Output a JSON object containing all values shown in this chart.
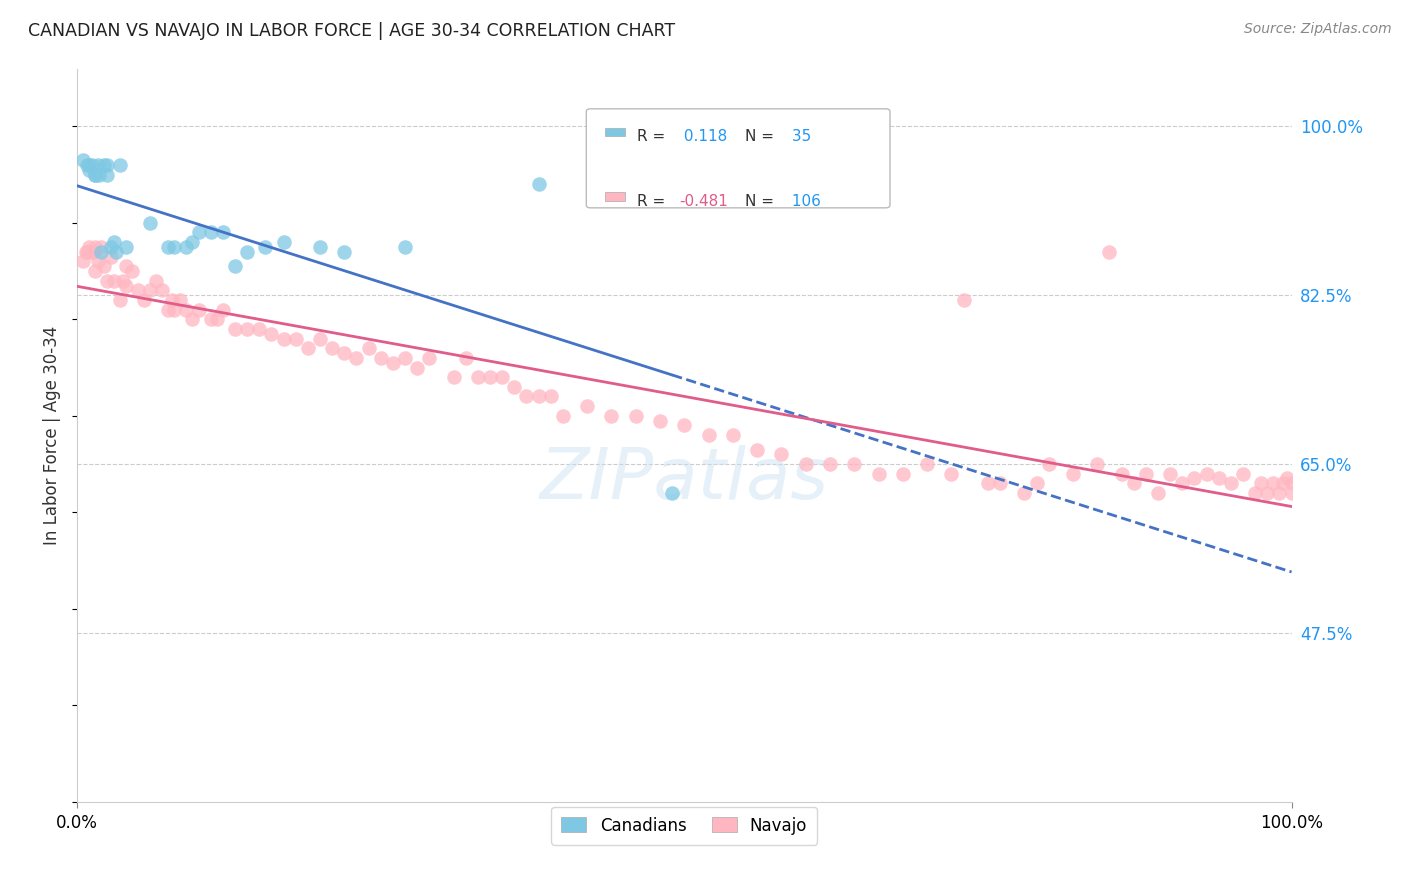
{
  "title": "CANADIAN VS NAVAJO IN LABOR FORCE | AGE 30-34 CORRELATION CHART",
  "source": "Source: ZipAtlas.com",
  "ylabel": "In Labor Force | Age 30-34",
  "xlim": [
    0.0,
    1.0
  ],
  "ylim": [
    0.3,
    1.06
  ],
  "yticks": [
    0.475,
    0.65,
    0.825,
    1.0
  ],
  "ytick_labels": [
    "47.5%",
    "65.0%",
    "82.5%",
    "100.0%"
  ],
  "xtick_labels": [
    "0.0%",
    "100.0%"
  ],
  "xticks": [
    0.0,
    1.0
  ],
  "canadian_R": 0.118,
  "canadian_N": 35,
  "navajo_R": -0.481,
  "navajo_N": 106,
  "canadian_color": "#7ec8e3",
  "navajo_color": "#ffb6c1",
  "canadian_line_color": "#4472c4",
  "navajo_line_color": "#e05c8a",
  "legend_label_canadian": "Canadians",
  "legend_label_navajo": "Navajo",
  "background_color": "#ffffff",
  "grid_color": "#cccccc",
  "canadian_x": [
    0.005,
    0.008,
    0.01,
    0.01,
    0.012,
    0.015,
    0.015,
    0.017,
    0.018,
    0.02,
    0.022,
    0.025,
    0.025,
    0.028,
    0.03,
    0.032,
    0.035,
    0.04,
    0.06,
    0.075,
    0.08,
    0.09,
    0.095,
    0.1,
    0.11,
    0.12,
    0.13,
    0.14,
    0.155,
    0.17,
    0.2,
    0.22,
    0.27,
    0.38,
    0.49
  ],
  "canadian_y": [
    0.965,
    0.96,
    0.96,
    0.955,
    0.96,
    0.95,
    0.95,
    0.96,
    0.95,
    0.87,
    0.96,
    0.96,
    0.95,
    0.875,
    0.88,
    0.87,
    0.96,
    0.875,
    0.9,
    0.875,
    0.875,
    0.875,
    0.88,
    0.89,
    0.89,
    0.89,
    0.855,
    0.87,
    0.875,
    0.88,
    0.875,
    0.87,
    0.875,
    0.94,
    0.62
  ],
  "navajo_x": [
    0.005,
    0.007,
    0.008,
    0.01,
    0.012,
    0.013,
    0.015,
    0.015,
    0.017,
    0.02,
    0.022,
    0.025,
    0.028,
    0.03,
    0.035,
    0.038,
    0.04,
    0.04,
    0.045,
    0.05,
    0.055,
    0.06,
    0.065,
    0.07,
    0.075,
    0.078,
    0.08,
    0.085,
    0.09,
    0.095,
    0.1,
    0.11,
    0.115,
    0.12,
    0.13,
    0.14,
    0.15,
    0.16,
    0.17,
    0.18,
    0.19,
    0.2,
    0.21,
    0.22,
    0.23,
    0.24,
    0.25,
    0.26,
    0.27,
    0.28,
    0.29,
    0.31,
    0.32,
    0.33,
    0.34,
    0.35,
    0.36,
    0.37,
    0.38,
    0.39,
    0.4,
    0.42,
    0.44,
    0.46,
    0.48,
    0.5,
    0.52,
    0.54,
    0.56,
    0.58,
    0.6,
    0.62,
    0.64,
    0.66,
    0.68,
    0.7,
    0.72,
    0.73,
    0.75,
    0.76,
    0.78,
    0.79,
    0.8,
    0.82,
    0.84,
    0.85,
    0.86,
    0.87,
    0.88,
    0.89,
    0.9,
    0.91,
    0.92,
    0.93,
    0.94,
    0.95,
    0.96,
    0.97,
    0.975,
    0.98,
    0.985,
    0.99,
    0.993,
    0.996,
    1.0,
    1.0
  ],
  "navajo_y": [
    0.86,
    0.87,
    0.87,
    0.875,
    0.87,
    0.87,
    0.85,
    0.875,
    0.86,
    0.875,
    0.855,
    0.84,
    0.865,
    0.84,
    0.82,
    0.84,
    0.855,
    0.835,
    0.85,
    0.83,
    0.82,
    0.83,
    0.84,
    0.83,
    0.81,
    0.82,
    0.81,
    0.82,
    0.81,
    0.8,
    0.81,
    0.8,
    0.8,
    0.81,
    0.79,
    0.79,
    0.79,
    0.785,
    0.78,
    0.78,
    0.77,
    0.78,
    0.77,
    0.765,
    0.76,
    0.77,
    0.76,
    0.755,
    0.76,
    0.75,
    0.76,
    0.74,
    0.76,
    0.74,
    0.74,
    0.74,
    0.73,
    0.72,
    0.72,
    0.72,
    0.7,
    0.71,
    0.7,
    0.7,
    0.695,
    0.69,
    0.68,
    0.68,
    0.665,
    0.66,
    0.65,
    0.65,
    0.65,
    0.64,
    0.64,
    0.65,
    0.64,
    0.82,
    0.63,
    0.63,
    0.62,
    0.63,
    0.65,
    0.64,
    0.65,
    0.87,
    0.64,
    0.63,
    0.64,
    0.62,
    0.64,
    0.63,
    0.635,
    0.64,
    0.635,
    0.63,
    0.64,
    0.62,
    0.63,
    0.62,
    0.63,
    0.62,
    0.63,
    0.635,
    0.63,
    0.62
  ]
}
